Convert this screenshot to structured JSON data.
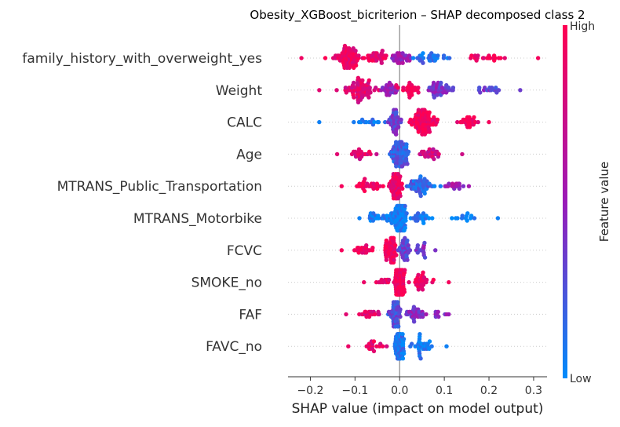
{
  "chart_data": {
    "type": "scatter",
    "subtype": "shap-beeswarm",
    "title": "Obesity_XGBoost_bicriterion – SHAP decomposed class 2",
    "xlabel": "SHAP value (impact on model output)",
    "xlim": [
      -0.25,
      0.33
    ],
    "xticks": [
      -0.2,
      -0.1,
      0.0,
      0.1,
      0.2,
      0.3
    ],
    "xtick_labels": [
      "−0.2",
      "−0.1",
      "0.0",
      "0.1",
      "0.2",
      "0.3"
    ],
    "zero_line": true,
    "colorbar": {
      "label": "Feature value",
      "high_label": "High",
      "low_label": "Low",
      "low_color": "#008bfb",
      "mid_color": "#9a1ab8",
      "high_color": "#ff0052"
    },
    "features": [
      {
        "name": "family_history_with_overweight_yes",
        "min": -0.22,
        "max": 0.31,
        "clusters": [
          {
            "center": -0.12,
            "spread": 0.05,
            "n": 70,
            "value": 0.92
          },
          {
            "center": -0.05,
            "spread": 0.04,
            "n": 30,
            "value": 0.9
          },
          {
            "center": 0.0,
            "spread": 0.04,
            "n": 30,
            "value": 0.5
          },
          {
            "center": 0.07,
            "spread": 0.05,
            "n": 30,
            "value": 0.15
          },
          {
            "center": 0.2,
            "spread": 0.06,
            "n": 20,
            "value": 0.95
          }
        ]
      },
      {
        "name": "Weight",
        "min": -0.18,
        "max": 0.27,
        "clusters": [
          {
            "center": -0.09,
            "spread": 0.05,
            "n": 70,
            "value": 0.85
          },
          {
            "center": -0.02,
            "spread": 0.03,
            "n": 25,
            "value": 0.5
          },
          {
            "center": 0.02,
            "spread": 0.03,
            "n": 25,
            "value": 0.95
          },
          {
            "center": 0.09,
            "spread": 0.05,
            "n": 40,
            "value": 0.4
          },
          {
            "center": 0.2,
            "spread": 0.04,
            "n": 15,
            "value": 0.35
          }
        ]
      },
      {
        "name": "CALC",
        "min": -0.18,
        "max": 0.2,
        "clusters": [
          {
            "center": -0.07,
            "spread": 0.05,
            "n": 15,
            "value": 0.05
          },
          {
            "center": -0.01,
            "spread": 0.02,
            "n": 40,
            "value": 0.35
          },
          {
            "center": 0.05,
            "spread": 0.04,
            "n": 90,
            "value": 0.95
          },
          {
            "center": 0.15,
            "spread": 0.04,
            "n": 25,
            "value": 0.95
          }
        ]
      },
      {
        "name": "Age",
        "min": -0.14,
        "max": 0.14,
        "clusters": [
          {
            "center": -0.09,
            "spread": 0.04,
            "n": 20,
            "value": 0.85
          },
          {
            "center": 0.0,
            "spread": 0.03,
            "n": 80,
            "value": 0.2
          },
          {
            "center": 0.07,
            "spread": 0.04,
            "n": 25,
            "value": 0.75
          }
        ]
      },
      {
        "name": "MTRANS_Public_Transportation",
        "min": -0.13,
        "max": 0.155,
        "clusters": [
          {
            "center": -0.07,
            "spread": 0.04,
            "n": 25,
            "value": 0.95
          },
          {
            "center": -0.01,
            "spread": 0.02,
            "n": 55,
            "value": 0.9
          },
          {
            "center": 0.05,
            "spread": 0.04,
            "n": 50,
            "value": 0.15
          },
          {
            "center": 0.12,
            "spread": 0.03,
            "n": 15,
            "value": 0.55
          }
        ]
      },
      {
        "name": "MTRANS_Motorbike",
        "min": -0.09,
        "max": 0.22,
        "clusters": [
          {
            "center": -0.05,
            "spread": 0.03,
            "n": 20,
            "value": 0.05
          },
          {
            "center": 0.0,
            "spread": 0.025,
            "n": 100,
            "value": 0.05
          },
          {
            "center": 0.05,
            "spread": 0.03,
            "n": 20,
            "value": 0.05
          },
          {
            "center": 0.14,
            "spread": 0.05,
            "n": 12,
            "value": 0.05
          }
        ]
      },
      {
        "name": "FCVC",
        "min": -0.13,
        "max": 0.08,
        "clusters": [
          {
            "center": -0.08,
            "spread": 0.03,
            "n": 20,
            "value": 0.95
          },
          {
            "center": -0.02,
            "spread": 0.02,
            "n": 55,
            "value": 0.95
          },
          {
            "center": 0.01,
            "spread": 0.02,
            "n": 35,
            "value": 0.3
          },
          {
            "center": 0.05,
            "spread": 0.02,
            "n": 15,
            "value": 0.4
          }
        ]
      },
      {
        "name": "SMOKE_no",
        "min": -0.08,
        "max": 0.11,
        "clusters": [
          {
            "center": -0.04,
            "spread": 0.03,
            "n": 10,
            "value": 0.9
          },
          {
            "center": 0.0,
            "spread": 0.015,
            "n": 110,
            "value": 0.97
          },
          {
            "center": 0.05,
            "spread": 0.03,
            "n": 30,
            "value": 0.95
          }
        ]
      },
      {
        "name": "FAF",
        "min": -0.12,
        "max": 0.11,
        "clusters": [
          {
            "center": -0.07,
            "spread": 0.03,
            "n": 18,
            "value": 0.85
          },
          {
            "center": -0.01,
            "spread": 0.02,
            "n": 50,
            "value": 0.25
          },
          {
            "center": 0.04,
            "spread": 0.03,
            "n": 30,
            "value": 0.45
          },
          {
            "center": 0.09,
            "spread": 0.02,
            "n": 8,
            "value": 0.5
          }
        ]
      },
      {
        "name": "FAVC_no",
        "min": -0.115,
        "max": 0.105,
        "clusters": [
          {
            "center": -0.06,
            "spread": 0.03,
            "n": 18,
            "value": 0.9
          },
          {
            "center": 0.0,
            "spread": 0.015,
            "n": 85,
            "value": 0.1
          },
          {
            "center": 0.05,
            "spread": 0.03,
            "n": 30,
            "value": 0.05
          }
        ]
      }
    ]
  }
}
